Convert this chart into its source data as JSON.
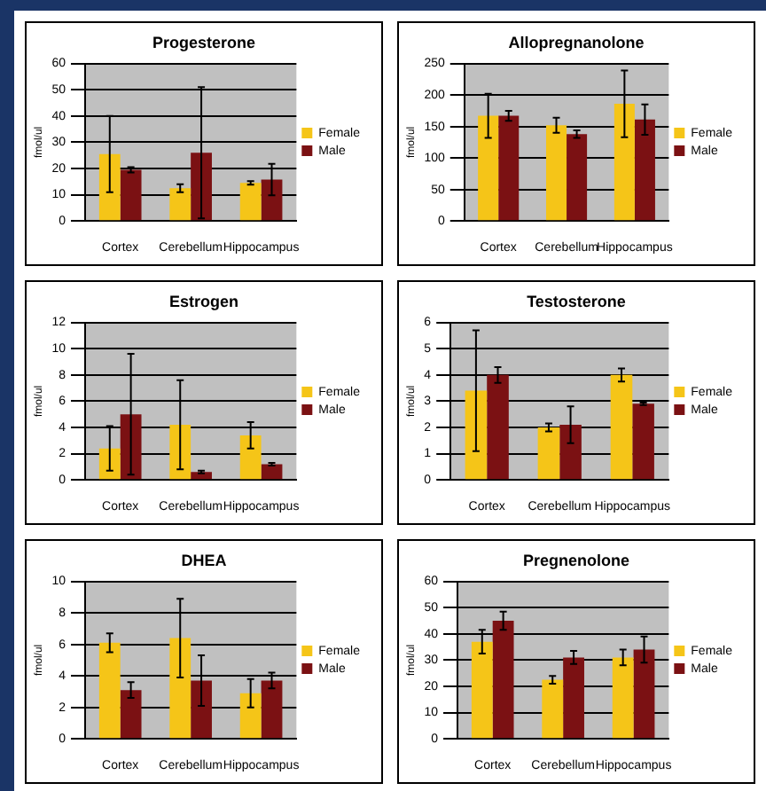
{
  "chart_data": [
    {
      "type": "bar",
      "title": "Progesterone",
      "ylabel": "fmol/ul",
      "categories": [
        "Cortex",
        "Cerebellum",
        "Hippocampus"
      ],
      "series": [
        {
          "name": "Female",
          "color": "#f5c518",
          "values": [
            25.5,
            12.5,
            14.5
          ],
          "errors": [
            14.5,
            1.5,
            0.7
          ]
        },
        {
          "name": "Male",
          "color": "#7b1113",
          "values": [
            19.5,
            26,
            15.8
          ],
          "errors": [
            1,
            25,
            6
          ]
        }
      ],
      "ylim": [
        0,
        60
      ],
      "yticks": [
        0,
        10,
        20,
        30,
        40,
        50,
        60
      ],
      "grid": "y",
      "legend": "right"
    },
    {
      "type": "bar",
      "title": "Allopregnanolone",
      "ylabel": "fmol/ul",
      "categories": [
        "Cortex",
        "Cerebellum",
        "Hippocampus"
      ],
      "series": [
        {
          "name": "Female",
          "color": "#f5c518",
          "values": [
            167,
            152,
            186
          ],
          "errors": [
            35,
            12,
            53
          ]
        },
        {
          "name": "Male",
          "color": "#7b1113",
          "values": [
            167,
            138,
            161
          ],
          "errors": [
            8,
            6,
            24
          ]
        }
      ],
      "ylim": [
        0,
        250
      ],
      "yticks": [
        0,
        50,
        100,
        150,
        200,
        250
      ],
      "grid": "y",
      "legend": "right"
    },
    {
      "type": "bar",
      "title": "Estrogen",
      "ylabel": "fmol/ul",
      "categories": [
        "Cortex",
        "Cerebellum",
        "Hippocampus"
      ],
      "series": [
        {
          "name": "Female",
          "color": "#f5c518",
          "values": [
            2.4,
            4.2,
            3.4
          ],
          "errors": [
            1.7,
            3.4,
            1.0
          ]
        },
        {
          "name": "Male",
          "color": "#7b1113",
          "values": [
            5.0,
            0.6,
            1.2
          ],
          "errors": [
            4.6,
            0.1,
            0.1
          ]
        }
      ],
      "ylim": [
        0,
        12
      ],
      "yticks": [
        0,
        2,
        4,
        6,
        8,
        10,
        12
      ],
      "grid": "y",
      "legend": "right"
    },
    {
      "type": "bar",
      "title": "Testosterone",
      "ylabel": "fmol/ul",
      "categories": [
        "Cortex",
        "Cerebellum",
        "Hippocampus"
      ],
      "series": [
        {
          "name": "Female",
          "color": "#f5c518",
          "values": [
            3.4,
            2.0,
            4.0
          ],
          "errors": [
            2.3,
            0.15,
            0.25
          ]
        },
        {
          "name": "Male",
          "color": "#7b1113",
          "values": [
            4.0,
            2.1,
            2.9
          ],
          "errors": [
            0.3,
            0.7,
            0.05
          ]
        }
      ],
      "ylim": [
        0,
        6
      ],
      "yticks": [
        0,
        1,
        2,
        3,
        4,
        5,
        6
      ],
      "grid": "y",
      "legend": "right"
    },
    {
      "type": "bar",
      "title": "DHEA",
      "ylabel": "fmol/ul",
      "categories": [
        "Cortex",
        "Cerebellum",
        "Hippocampus"
      ],
      "series": [
        {
          "name": "Female",
          "color": "#f5c518",
          "values": [
            6.1,
            6.4,
            2.9
          ],
          "errors": [
            0.6,
            2.5,
            0.9
          ]
        },
        {
          "name": "Male",
          "color": "#7b1113",
          "values": [
            3.1,
            3.7,
            3.7
          ],
          "errors": [
            0.5,
            1.6,
            0.5
          ]
        }
      ],
      "ylim": [
        0,
        10
      ],
      "yticks": [
        0,
        2,
        4,
        6,
        8,
        10
      ],
      "grid": "y",
      "legend": "right"
    },
    {
      "type": "bar",
      "title": "Pregnenolone",
      "ylabel": "fmol/ul",
      "categories": [
        "Cortex",
        "Cerebellum",
        "Hippocampus"
      ],
      "series": [
        {
          "name": "Female",
          "color": "#f5c518",
          "values": [
            37,
            22.5,
            31
          ],
          "errors": [
            4.5,
            1.5,
            3
          ]
        },
        {
          "name": "Male",
          "color": "#7b1113",
          "values": [
            45,
            31,
            34
          ],
          "errors": [
            3.5,
            2.5,
            5
          ]
        }
      ],
      "ylim": [
        0,
        60
      ],
      "yticks": [
        0,
        10,
        20,
        30,
        40,
        50,
        60
      ],
      "grid": "y",
      "legend": "right"
    }
  ]
}
